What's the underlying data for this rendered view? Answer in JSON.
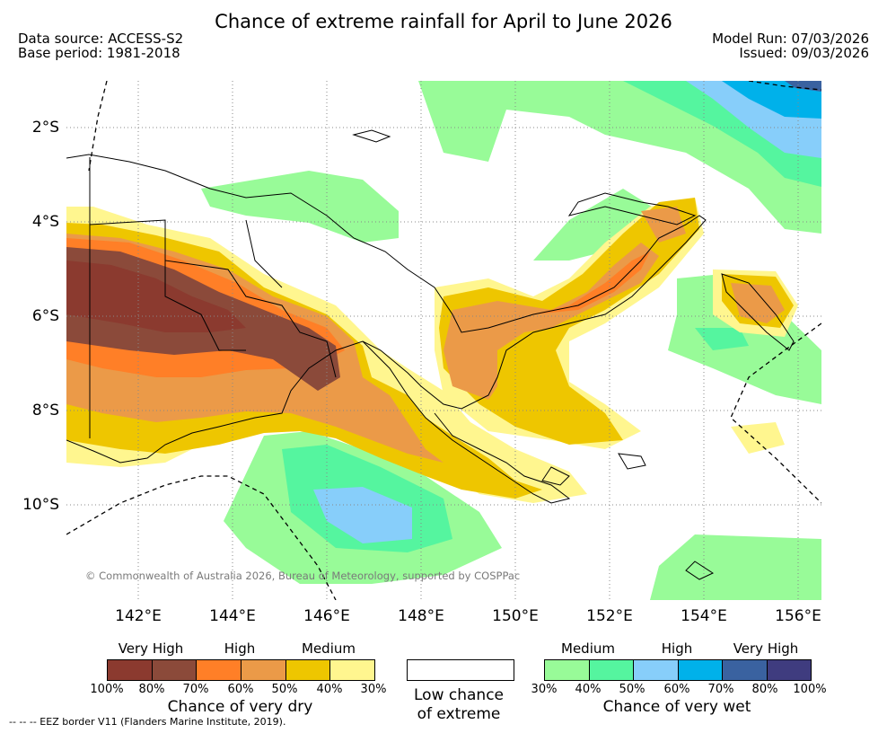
{
  "header": {
    "title": "Chance of extreme rainfall for April to June 2026",
    "data_source": "Data source: ACCESS-S2",
    "base_period": "Base period: 1981-2018",
    "model_run": "Model Run: 07/03/2026",
    "issued": "Issued: 09/03/2026"
  },
  "map": {
    "lat_labels": [
      "2°S",
      "4°S",
      "6°S",
      "8°S",
      "10°S"
    ],
    "lon_labels": [
      "142°E",
      "144°E",
      "146°E",
      "148°E",
      "150°E",
      "152°E",
      "154°E",
      "156°E"
    ],
    "copyright": "© Commonwealth of Australia 2026, Bureau of Meteorology, supported by COSPPac",
    "colors": {
      "dry_very_high_100": "#8B3A2F",
      "dry_very_high_80": "#8B4A3A",
      "dry_high_70": "#FF7F27",
      "dry_high_60": "#EB9A48",
      "dry_medium_50": "#EEC600",
      "dry_medium_40": "#FFF68F",
      "wet_medium_30": "#98FB98",
      "wet_medium_40": "#55F59F",
      "wet_high_50": "#87CEFA",
      "wet_high_60": "#00B1EA",
      "wet_very_high_70": "#3A62A0",
      "wet_very_high_80": "#3F3C7F",
      "low_chance": "#FFFFFF"
    }
  },
  "legend": {
    "dry": {
      "headings": [
        "Very High",
        "High",
        "Medium"
      ],
      "ticks": [
        "100%",
        "80%",
        "70%",
        "60%",
        "50%",
        "40%",
        "30%"
      ],
      "label": "Chance of very dry"
    },
    "low": {
      "label_line1": "Low chance",
      "label_line2": "of extreme"
    },
    "wet": {
      "headings": [
        "Medium",
        "High",
        "Very High"
      ],
      "ticks": [
        "30%",
        "40%",
        "50%",
        "60%",
        "70%",
        "80%",
        "100%"
      ],
      "label": "Chance of very wet"
    }
  },
  "footer": {
    "eez_note": "-- -- -- EEZ border V11 (Flanders Marine Institute, 2019)."
  }
}
